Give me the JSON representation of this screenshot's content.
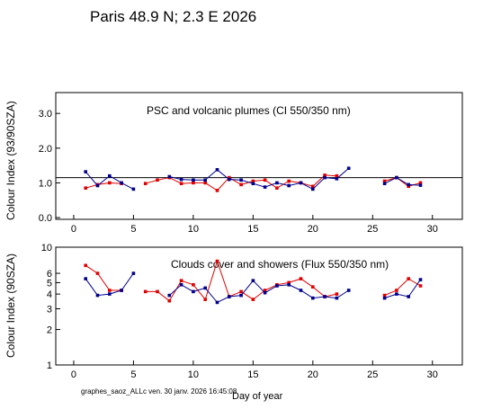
{
  "header": {
    "title": "Paris  48.9 N; 2.3 E   2026"
  },
  "footer": {
    "text": "graphes_saoz_ALLc  ven. 30 janv. 2026 16:45:08"
  },
  "colors": {
    "red": "#e00000",
    "blue": "#00008b",
    "black": "#000000"
  },
  "chart_data": [
    {
      "type": "line",
      "annotation": "PSC and volcanic plumes (CI 550/350 nm)",
      "ylabel": "Colour Index (93/90SZA)",
      "xlabel": "",
      "xlim": [
        -1.5,
        32.5
      ],
      "ylim": [
        -0.05,
        3.6
      ],
      "yscale": "linear",
      "xticks": [
        0,
        5,
        10,
        15,
        20,
        25,
        30
      ],
      "yticks": [
        0.0,
        1.0,
        2.0,
        3.0
      ],
      "ytick_labels": [
        "0.0",
        "1.0",
        "2.0",
        "3.0"
      ],
      "hline": 1.15,
      "series": [
        {
          "color": "red",
          "x": [
            1,
            2,
            3,
            4,
            6,
            7,
            8,
            9,
            10,
            11,
            12,
            13,
            14,
            15,
            16,
            17,
            18,
            19,
            20,
            21,
            22,
            26,
            27,
            28,
            29
          ],
          "y": [
            0.85,
            0.95,
            1.0,
            0.98,
            0.98,
            1.08,
            1.15,
            0.98,
            1.0,
            1.0,
            0.78,
            1.15,
            0.95,
            1.05,
            1.08,
            0.85,
            1.05,
            1.0,
            0.9,
            1.22,
            1.2,
            1.05,
            1.15,
            0.9,
            1.0
          ]
        },
        {
          "color": "blue",
          "x": [
            1,
            2,
            3,
            4,
            5,
            8,
            9,
            10,
            11,
            12,
            13,
            14,
            15,
            16,
            17,
            18,
            19,
            20,
            21,
            22,
            23,
            26,
            27,
            28,
            29
          ],
          "y": [
            1.32,
            0.92,
            1.2,
            1.0,
            0.82,
            1.18,
            1.1,
            1.08,
            1.08,
            1.38,
            1.1,
            1.08,
            0.98,
            0.88,
            1.0,
            0.92,
            1.0,
            0.82,
            1.15,
            1.12,
            1.42,
            0.98,
            1.15,
            0.95,
            0.93
          ]
        }
      ]
    },
    {
      "type": "line",
      "annotation": "Clouds cover and showers (Flux 550/350 nm)",
      "ylabel": "Colour Index (90SZA)",
      "xlabel": "Day of year",
      "xlim": [
        -1.5,
        32.5
      ],
      "ylim": [
        1,
        10
      ],
      "yscale": "log",
      "xticks": [
        0,
        5,
        10,
        15,
        20,
        25,
        30
      ],
      "yticks": [
        1,
        2,
        3,
        4,
        5,
        6,
        10
      ],
      "ytick_labels": [
        "1",
        "2",
        "3",
        "4",
        "5",
        "6",
        "10"
      ],
      "series": [
        {
          "color": "red",
          "x": [
            1,
            2,
            3,
            4,
            6,
            7,
            8,
            9,
            10,
            11,
            12,
            13,
            14,
            15,
            16,
            17,
            18,
            19,
            20,
            21,
            22,
            26,
            27,
            28,
            29
          ],
          "y": [
            7.0,
            6.0,
            4.3,
            4.3,
            4.2,
            4.2,
            3.5,
            5.2,
            4.8,
            3.6,
            7.6,
            3.8,
            4.2,
            3.6,
            4.3,
            4.8,
            5.0,
            5.4,
            4.6,
            3.8,
            4.0,
            3.9,
            4.3,
            5.4,
            4.7
          ]
        },
        {
          "color": "blue",
          "x": [
            1,
            2,
            3,
            4,
            5,
            8,
            9,
            10,
            11,
            12,
            13,
            14,
            15,
            16,
            17,
            18,
            19,
            20,
            21,
            22,
            23,
            26,
            27,
            28,
            29
          ],
          "y": [
            5.4,
            3.9,
            4.0,
            4.3,
            6.0,
            3.9,
            4.8,
            4.2,
            4.5,
            3.4,
            3.8,
            3.9,
            5.2,
            4.1,
            4.7,
            4.8,
            4.3,
            3.7,
            3.8,
            3.7,
            4.3,
            3.7,
            4.0,
            3.8,
            5.3
          ]
        }
      ]
    }
  ]
}
